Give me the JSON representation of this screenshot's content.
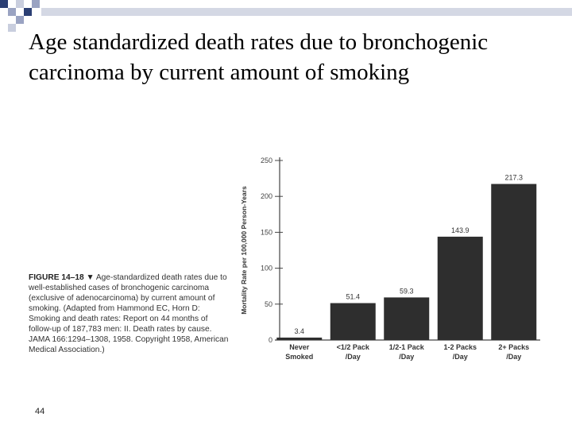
{
  "slide": {
    "title": "Age standardized death rates due to bronchogenic carcinoma by current amount of smoking",
    "slide_number": "44"
  },
  "figure": {
    "label": "FIGURE 14–18 ▼",
    "caption": "Age-standardized death rates due to well-established cases of bronchogenic carcinoma (exclusive of adenocarcinoma) by current amount of smoking. (Adapted from Hammond EC, Horn D: Smoking and death rates: Report on 44 months of follow-up of 187,783 men: II. Death rates by cause. JAMA 166:1294–1308, 1958. Copyright 1958, American Medical Association.)"
  },
  "colors": {
    "bar": "#2e2e2e",
    "title_blocks": [
      "#2b3f74",
      "#9aa3c2",
      "#c9cede"
    ]
  },
  "chart_data": {
    "type": "bar",
    "title": "",
    "xlabel": "",
    "ylabel": "Mortality Rate per 100,000 Person-Years",
    "ylim": [
      0,
      250
    ],
    "yticks": [
      0,
      50,
      100,
      150,
      200,
      250
    ],
    "categories": [
      [
        "Never",
        "Smoked"
      ],
      [
        "<1/2 Pack",
        "/Day"
      ],
      [
        "1/2-1 Pack",
        "/Day"
      ],
      [
        "1-2 Packs",
        "/Day"
      ],
      [
        "2+ Packs",
        "/Day"
      ]
    ],
    "values": [
      3.4,
      51.4,
      59.3,
      143.9,
      217.3
    ],
    "value_labels": [
      "3.4",
      "51.4",
      "59.3",
      "143.9",
      "217.3"
    ],
    "grid": false,
    "legend": "none"
  }
}
